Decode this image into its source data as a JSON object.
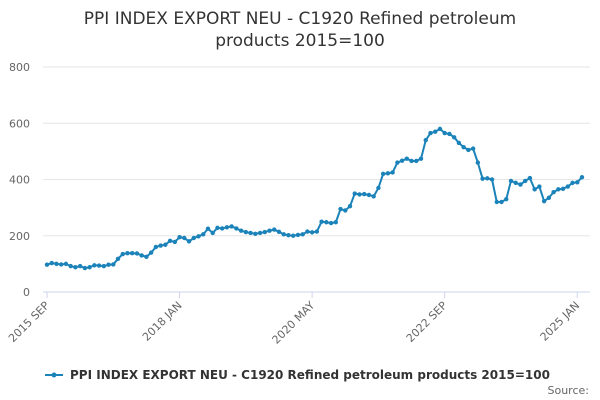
{
  "colors": {
    "series": "#1b83b9",
    "grid": "#e6e6e6",
    "axis": "#ccd6eb"
  },
  "chart_data": {
    "type": "line",
    "title_lines": [
      "PPI INDEX EXPORT NEU - C1920 Refined petroleum",
      "products 2015=100"
    ],
    "xlabel": "",
    "ylabel": "",
    "ylim": [
      0,
      800
    ],
    "y_ticks": [
      "0",
      "200",
      "400",
      "600",
      "800"
    ],
    "grid": true,
    "legend_position": "bottom-center",
    "x_ticks": [
      {
        "label": "2015 SEP",
        "index": 0
      },
      {
        "label": "2018 JAN",
        "index": 28
      },
      {
        "label": "2020 MAY",
        "index": 56
      },
      {
        "label": "2022 SEP",
        "index": 84
      },
      {
        "label": "2025 JAN",
        "index": 112
      }
    ],
    "source_label": "Source:",
    "series": [
      {
        "name": "PPI INDEX EXPORT NEU - C1920 Refined petroleum products 2015=100",
        "values": [
          97,
          103,
          100,
          98,
          100,
          92,
          88,
          92,
          85,
          88,
          95,
          94,
          92,
          97,
          98,
          118,
          135,
          138,
          138,
          137,
          130,
          125,
          140,
          160,
          165,
          168,
          182,
          178,
          195,
          192,
          180,
          192,
          198,
          205,
          225,
          210,
          228,
          226,
          230,
          233,
          226,
          218,
          213,
          210,
          207,
          210,
          213,
          218,
          222,
          214,
          205,
          202,
          200,
          203,
          205,
          215,
          212,
          215,
          250,
          248,
          245,
          248,
          295,
          290,
          305,
          350,
          347,
          348,
          345,
          340,
          370,
          420,
          422,
          425,
          460,
          467,
          474,
          466,
          466,
          474,
          540,
          565,
          570,
          580,
          565,
          562,
          550,
          530,
          515,
          505,
          510,
          460,
          403,
          404,
          400,
          320,
          320,
          330,
          395,
          388,
          382,
          395,
          405,
          365,
          375,
          323,
          335,
          355,
          365,
          367,
          375,
          388,
          390,
          408
        ]
      }
    ]
  }
}
